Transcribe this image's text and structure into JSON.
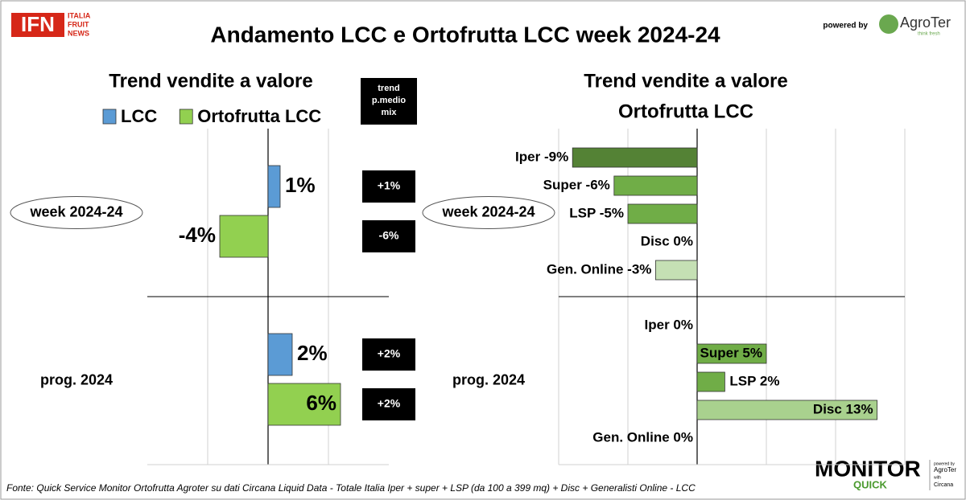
{
  "header": {
    "logo": "IFN",
    "logo_sub": [
      "ITALIA",
      "FRUIT",
      "NEWS"
    ],
    "title": "Andamento LCC e Ortofrutta LCC week 2024-24",
    "powered_by": "powered by",
    "brand": "AgroTer",
    "brand_sub": "think fresh"
  },
  "chart_data": [
    {
      "type": "bar",
      "orientation": "horizontal",
      "title": "Trend vendite a valore",
      "categories": [
        "week 2024-24",
        "prog. 2024"
      ],
      "series": [
        {
          "name": "LCC",
          "color": "#5b9bd5",
          "values": [
            1,
            2
          ],
          "value_labels": [
            "1%",
            "2%"
          ]
        },
        {
          "name": "Ortofrutta LCC",
          "color": "#92d050",
          "values": [
            -4,
            6
          ],
          "value_labels": [
            "-4%",
            "6%"
          ]
        }
      ],
      "xlim": [
        -10,
        10
      ],
      "xticks": [
        -5,
        0,
        5
      ],
      "grid": true,
      "legend": "top",
      "trend": {
        "title": "trend p.medio mix",
        "values": [
          [
            1,
            2
          ],
          [
            -6,
            2
          ]
        ],
        "value_labels": [
          [
            "+1%",
            "+2%"
          ],
          [
            "-6%",
            "+2%"
          ]
        ]
      }
    },
    {
      "type": "bar",
      "orientation": "horizontal",
      "title": "Trend vendite a valore",
      "subtitle": "Ortofrutta LCC",
      "categories": [
        "week 2024-24",
        "prog. 2024"
      ],
      "series": [
        {
          "name": "Iper",
          "color": "#548235",
          "values": [
            -9,
            0
          ],
          "value_labels": [
            "Iper -9%",
            "Iper 0%"
          ]
        },
        {
          "name": "Super",
          "color": "#70ad47",
          "values": [
            -6,
            5
          ],
          "value_labels": [
            "Super -6%",
            "Super 5%"
          ]
        },
        {
          "name": "LSP",
          "color": "#70ad47",
          "values": [
            -5,
            2
          ],
          "value_labels": [
            "LSP -5%",
            "LSP 2%"
          ]
        },
        {
          "name": "Disc",
          "color": "#a9d18e",
          "values": [
            0,
            13
          ],
          "value_labels": [
            "Disc 0%",
            "Disc 13%"
          ]
        },
        {
          "name": "Gen. Online",
          "color": "#c5e0b4",
          "values": [
            -3,
            0
          ],
          "value_labels": [
            "Gen. Online -3%",
            "Gen. Online 0%"
          ]
        }
      ],
      "xlim": [
        -10,
        15
      ],
      "xticks": [
        -10,
        -5,
        0,
        5,
        10,
        15
      ],
      "grid": true,
      "legend": false
    }
  ],
  "footer": {
    "source": "Fonte: Quick Service Monitor Ortofrutta Agroter su dati Circana Liquid Data - Totale Italia Iper + super + LSP (da 100 a 399 mq) + Disc + Generalisti Online - LCC",
    "logo": "MONITOR",
    "logo_sub": "QUICK",
    "badge": [
      "powered by",
      "AgroTer",
      "with",
      "Circana"
    ]
  }
}
